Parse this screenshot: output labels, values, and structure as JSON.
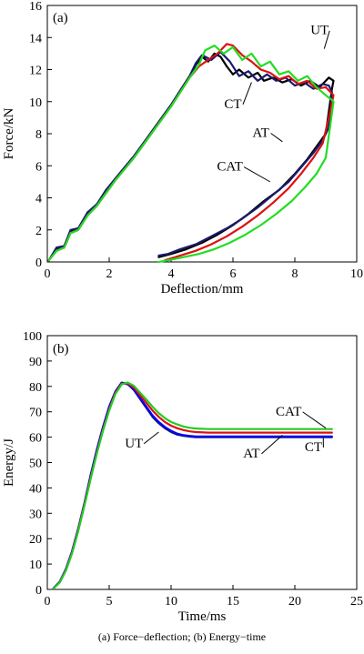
{
  "chart_data": [
    {
      "type": "line",
      "panel_label": "(a)",
      "xlabel": "Deflection/mm",
      "ylabel": "Force/kN",
      "xlim": [
        0,
        10
      ],
      "ylim": [
        0,
        16
      ],
      "xticks": [
        0,
        2,
        4,
        6,
        8,
        10
      ],
      "yticks": [
        0,
        2,
        4,
        6,
        8,
        10,
        12,
        14,
        16
      ],
      "grid": false,
      "series": [
        {
          "name": "UT",
          "color": "#000000",
          "x": [
            0.05,
            0.3,
            0.55,
            0.75,
            1.0,
            1.3,
            1.6,
            1.9,
            2.2,
            2.5,
            2.8,
            3.1,
            3.4,
            3.7,
            4.0,
            4.3,
            4.6,
            4.8,
            5.0,
            5.2,
            5.4,
            5.6,
            5.8,
            6.0,
            6.2,
            6.5,
            6.8,
            7.0,
            7.3,
            7.6,
            7.9,
            8.2,
            8.5,
            8.8,
            9.1,
            9.25,
            9.2,
            9.0,
            8.7,
            8.4,
            8.0,
            7.5,
            7.0,
            6.5,
            6.0,
            5.5,
            5.0,
            4.5,
            4.0,
            3.6
          ],
          "y": [
            0.1,
            0.8,
            1.0,
            1.9,
            2.1,
            3.0,
            3.6,
            4.4,
            5.2,
            5.9,
            6.6,
            7.4,
            8.2,
            9.0,
            9.8,
            10.7,
            11.6,
            12.3,
            12.8,
            12.5,
            13.0,
            12.8,
            12.2,
            11.7,
            12.0,
            11.5,
            11.8,
            11.3,
            11.5,
            11.2,
            11.4,
            11.0,
            11.3,
            10.9,
            11.5,
            11.3,
            10.8,
            8.0,
            7.2,
            6.4,
            5.5,
            4.5,
            3.8,
            3.0,
            2.3,
            1.7,
            1.2,
            0.8,
            0.5,
            0.3
          ]
        },
        {
          "name": "CT",
          "color": "#1a1a6e",
          "x": [
            0.05,
            0.3,
            0.55,
            0.75,
            1.0,
            1.3,
            1.6,
            1.9,
            2.2,
            2.5,
            2.8,
            3.1,
            3.4,
            3.7,
            4.0,
            4.3,
            4.6,
            4.8,
            5.0,
            5.3,
            5.6,
            5.9,
            6.2,
            6.5,
            6.8,
            7.1,
            7.4,
            7.7,
            8.0,
            8.3,
            8.6,
            8.9,
            9.1,
            9.2,
            9.1,
            8.9,
            8.6,
            8.2,
            7.8,
            7.3,
            6.8,
            6.3,
            5.8,
            5.3,
            4.8,
            4.3,
            3.9,
            3.6
          ],
          "y": [
            0.1,
            0.9,
            1.0,
            2.0,
            2.1,
            3.1,
            3.6,
            4.5,
            5.2,
            5.9,
            6.6,
            7.4,
            8.2,
            9.0,
            9.8,
            10.7,
            11.6,
            12.4,
            12.9,
            12.6,
            13.1,
            12.5,
            11.6,
            11.9,
            11.3,
            11.7,
            11.3,
            11.5,
            11.0,
            11.2,
            10.8,
            11.1,
            11.0,
            10.6,
            8.4,
            7.6,
            6.8,
            5.9,
            5.0,
            4.2,
            3.4,
            2.7,
            2.1,
            1.6,
            1.1,
            0.8,
            0.5,
            0.4
          ]
        },
        {
          "name": "AT",
          "color": "#dd1111",
          "x": [
            0.05,
            0.3,
            0.55,
            0.75,
            1.0,
            1.3,
            1.6,
            1.9,
            2.2,
            2.5,
            2.8,
            3.1,
            3.4,
            3.7,
            4.0,
            4.3,
            4.6,
            4.9,
            5.2,
            5.5,
            5.8,
            6.0,
            6.3,
            6.6,
            6.9,
            7.2,
            7.5,
            7.8,
            8.1,
            8.4,
            8.7,
            9.0,
            9.2,
            9.25,
            9.1,
            8.9,
            8.6,
            8.2,
            7.8,
            7.3,
            6.8,
            6.3,
            5.8,
            5.3,
            4.8,
            4.3,
            3.8
          ],
          "y": [
            0.1,
            0.7,
            0.9,
            1.8,
            2.0,
            2.9,
            3.5,
            4.3,
            5.1,
            5.8,
            6.5,
            7.3,
            8.1,
            8.9,
            9.7,
            10.6,
            11.5,
            12.2,
            12.6,
            13.0,
            13.6,
            13.5,
            12.9,
            12.5,
            12.0,
            11.8,
            11.4,
            11.6,
            11.1,
            11.3,
            10.8,
            10.9,
            10.5,
            10.4,
            9.0,
            7.4,
            6.5,
            5.5,
            4.6,
            3.7,
            2.9,
            2.2,
            1.6,
            1.1,
            0.7,
            0.4,
            0.1
          ]
        },
        {
          "name": "CAT",
          "color": "#22dd22",
          "x": [
            0.05,
            0.3,
            0.55,
            0.75,
            1.0,
            1.3,
            1.6,
            1.9,
            2.2,
            2.5,
            2.8,
            3.1,
            3.4,
            3.7,
            4.0,
            4.3,
            4.6,
            4.9,
            5.1,
            5.4,
            5.7,
            6.0,
            6.3,
            6.6,
            6.9,
            7.2,
            7.5,
            7.8,
            8.1,
            8.4,
            8.7,
            9.0,
            9.2,
            9.25,
            9.0,
            8.7,
            8.3,
            7.9,
            7.4,
            6.9,
            6.4,
            5.9,
            5.4,
            4.9,
            4.4,
            3.9,
            3.6
          ],
          "y": [
            0.1,
            0.7,
            0.9,
            1.8,
            2.0,
            2.9,
            3.5,
            4.3,
            5.1,
            5.8,
            6.5,
            7.3,
            8.1,
            8.9,
            9.7,
            10.6,
            11.5,
            12.3,
            13.2,
            13.5,
            13.0,
            13.4,
            12.6,
            13.0,
            12.2,
            12.5,
            11.7,
            11.9,
            11.3,
            11.6,
            10.9,
            10.4,
            10.1,
            10.0,
            6.5,
            5.5,
            4.6,
            3.8,
            3.0,
            2.3,
            1.7,
            1.2,
            0.8,
            0.5,
            0.3,
            0.1,
            0.0
          ]
        }
      ],
      "annotations": [
        {
          "text": "UT",
          "x": 8.8,
          "y": 14.2,
          "tx": 8.95,
          "ty": 13.3
        },
        {
          "text": "CT",
          "x": 6.0,
          "y": 9.6,
          "tx": 6.6,
          "ty": 11.2
        },
        {
          "text": "AT",
          "x": 6.9,
          "y": 7.8,
          "tx": 7.6,
          "ty": 7.5
        },
        {
          "text": "CAT",
          "x": 5.9,
          "y": 5.7,
          "tx": 7.2,
          "ty": 5.0
        }
      ]
    },
    {
      "type": "line",
      "panel_label": "(b)",
      "xlabel": "Time/ms",
      "ylabel": "Energy/J",
      "xlim": [
        0,
        25
      ],
      "ylim": [
        0,
        100
      ],
      "xticks": [
        0,
        5,
        10,
        15,
        20,
        25
      ],
      "yticks": [
        0,
        10,
        20,
        30,
        40,
        50,
        60,
        70,
        80,
        90,
        100
      ],
      "grid": false,
      "series": [
        {
          "name": "UT",
          "color": "#1a1a6e",
          "x": [
            0.5,
            1.0,
            1.5,
            2.0,
            2.5,
            3.0,
            3.5,
            4.0,
            4.5,
            5.0,
            5.5,
            6.0,
            6.5,
            7.0,
            7.5,
            8.0,
            8.5,
            9.0,
            9.5,
            10.0,
            10.5,
            11.0,
            11.5,
            12.0,
            13.0,
            15.0,
            17.0,
            19.0,
            21.0,
            23.0
          ],
          "y": [
            0.5,
            3.0,
            8.0,
            15.0,
            24.0,
            34.0,
            45.0,
            55.0,
            64.0,
            72.0,
            78.0,
            81.5,
            81.0,
            78.5,
            75.0,
            71.5,
            68.0,
            65.5,
            63.5,
            62.0,
            61.0,
            60.5,
            60.2,
            60.0,
            60.0,
            60.0,
            60.0,
            60.0,
            60.0,
            60.0
          ]
        },
        {
          "name": "CT",
          "color": "#0000ff",
          "x": [
            0.5,
            1.0,
            1.5,
            2.0,
            2.5,
            3.0,
            3.5,
            4.0,
            4.5,
            5.0,
            5.5,
            6.0,
            6.5,
            7.0,
            7.5,
            8.0,
            8.5,
            9.0,
            9.5,
            10.0,
            10.5,
            11.0,
            11.5,
            12.0,
            13.0,
            15.0,
            17.0,
            19.0,
            21.0,
            23.0
          ],
          "y": [
            0.5,
            3.0,
            8.0,
            15.0,
            24.0,
            34.0,
            45.0,
            55.0,
            64.0,
            72.0,
            78.0,
            81.3,
            80.8,
            78.7,
            75.4,
            72.0,
            68.6,
            66.0,
            64.0,
            62.5,
            61.4,
            60.8,
            60.5,
            60.3,
            60.3,
            60.3,
            60.3,
            60.3,
            60.3,
            60.3
          ]
        },
        {
          "name": "AT",
          "color": "#dd1111",
          "x": [
            0.5,
            1.0,
            1.5,
            2.0,
            2.5,
            3.0,
            3.5,
            4.0,
            4.5,
            5.0,
            5.5,
            6.0,
            6.5,
            7.0,
            7.5,
            8.0,
            8.5,
            9.0,
            9.5,
            10.0,
            10.5,
            11.0,
            11.5,
            12.0,
            13.0,
            15.0,
            17.0,
            19.0,
            21.0,
            23.0
          ],
          "y": [
            0.4,
            2.8,
            7.6,
            14.5,
            23.5,
            33.5,
            44.0,
            54.0,
            63.0,
            71.0,
            77.5,
            81.0,
            81.2,
            79.5,
            76.5,
            73.5,
            70.5,
            68.0,
            66.0,
            64.5,
            63.5,
            62.8,
            62.3,
            62.0,
            61.8,
            61.8,
            61.8,
            61.8,
            61.8,
            61.8
          ]
        },
        {
          "name": "CAT",
          "color": "#22cc22",
          "x": [
            0.5,
            1.0,
            1.5,
            2.0,
            2.5,
            3.0,
            3.5,
            4.0,
            4.5,
            5.0,
            5.5,
            6.0,
            6.5,
            7.0,
            7.5,
            8.0,
            8.5,
            9.0,
            9.5,
            10.0,
            10.5,
            11.0,
            11.5,
            12.0,
            13.0,
            15.0,
            17.0,
            19.0,
            21.0,
            23.0
          ],
          "y": [
            0.4,
            2.7,
            7.4,
            14.2,
            23.0,
            33.0,
            43.5,
            53.5,
            62.5,
            70.5,
            77.0,
            80.8,
            81.5,
            80.2,
            77.5,
            74.8,
            72.0,
            69.5,
            67.5,
            66.0,
            65.0,
            64.2,
            63.7,
            63.4,
            63.2,
            63.2,
            63.2,
            63.2,
            63.2,
            63.2
          ]
        }
      ],
      "annotations": [
        {
          "text": "CAT",
          "x": 19.5,
          "y": 68.5,
          "tx": 22.5,
          "ty": 63.6
        },
        {
          "text": "UT",
          "x": 7.0,
          "y": 56.0,
          "tx": 9.0,
          "ty": 62.0
        },
        {
          "text": "AT",
          "x": 16.5,
          "y": 52.0,
          "tx": 19.0,
          "ty": 60.8
        },
        {
          "text": "CT",
          "x": 21.5,
          "y": 54.5,
          "tx": 22.3,
          "ty": 59.6
        }
      ]
    }
  ],
  "caption": "(a)  Force−deflection;  (b) Energy−time"
}
